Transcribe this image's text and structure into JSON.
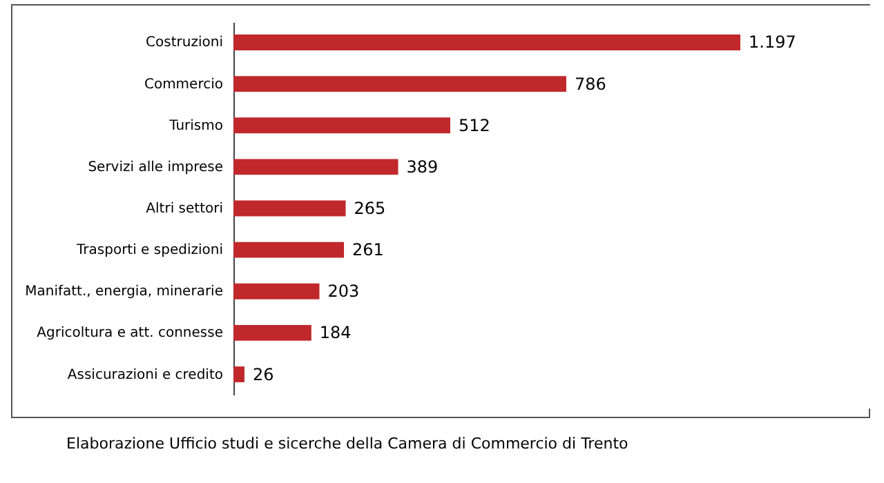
{
  "chart_data": {
    "type": "bar",
    "orientation": "horizontal",
    "categories": [
      "Costruzioni",
      "Commercio",
      "Turismo",
      "Servizi alle imprese",
      "Altri settori",
      "Trasporti e spedizioni",
      "Manifatt., energia, minerarie",
      "Agricoltura e att. connesse",
      "Assicurazioni e credito"
    ],
    "values": [
      1197,
      786,
      512,
      389,
      265,
      261,
      203,
      184,
      26
    ],
    "value_labels": [
      "1.197",
      "786",
      "512",
      "389",
      "265",
      "261",
      "203",
      "184",
      "26"
    ],
    "color": "#c0282c",
    "annotations": [
      "Elaborazione Ufficio studi e sicerche della Camera di Commercio di Trento"
    ]
  }
}
